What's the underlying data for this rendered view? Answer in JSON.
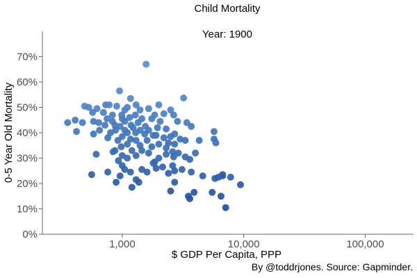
{
  "chart_data": {
    "type": "scatter",
    "title": "Child Mortality",
    "subtitle": "Year: 1900",
    "xlabel": "$ GDP Per Capita, PPP",
    "ylabel": "0-5 Year Old Mortality",
    "caption": "By @toddrjones. Source: Gapminder.",
    "x_scale": "log10",
    "xlim": [
      220,
      250000
    ],
    "ylim": [
      0,
      0.8
    ],
    "x_ticks": [
      1000,
      10000,
      100000
    ],
    "x_tick_labels": [
      "1,000",
      "10,000",
      "100,000"
    ],
    "y_ticks": [
      0,
      0.1,
      0.2,
      0.3,
      0.4,
      0.5,
      0.6,
      0.7
    ],
    "y_tick_labels": [
      "0%",
      "10%",
      "20%",
      "30%",
      "40%",
      "50%",
      "60%",
      "70%"
    ],
    "grid": false,
    "legend": "none",
    "point_color_light": "#5a8fd0",
    "point_color_dark": "#1f4f99",
    "points": [
      [
        1570,
        0.67
      ],
      [
        950,
        0.565
      ],
      [
        3200,
        0.537
      ],
      [
        1170,
        0.535
      ],
      [
        490,
        0.505
      ],
      [
        530,
        0.5
      ],
      [
        730,
        0.51
      ],
      [
        780,
        0.51
      ],
      [
        900,
        0.505
      ],
      [
        1300,
        0.51
      ],
      [
        1400,
        0.49
      ],
      [
        2000,
        0.51
      ],
      [
        1100,
        0.5
      ],
      [
        1050,
        0.49
      ],
      [
        620,
        0.495
      ],
      [
        1650,
        0.495
      ],
      [
        2500,
        0.49
      ],
      [
        1850,
        0.47
      ],
      [
        1280,
        0.47
      ],
      [
        990,
        0.47
      ],
      [
        830,
        0.47
      ],
      [
        700,
        0.48
      ],
      [
        570,
        0.48
      ],
      [
        2200,
        0.475
      ],
      [
        2650,
        0.47
      ],
      [
        1150,
        0.46
      ],
      [
        1000,
        0.455
      ],
      [
        750,
        0.455
      ],
      [
        1450,
        0.455
      ],
      [
        1750,
        0.455
      ],
      [
        2050,
        0.445
      ],
      [
        2850,
        0.445
      ],
      [
        1050,
        0.445
      ],
      [
        830,
        0.445
      ],
      [
        1350,
        0.44
      ],
      [
        640,
        0.44
      ],
      [
        580,
        0.445
      ],
      [
        410,
        0.45
      ],
      [
        355,
        0.44
      ],
      [
        470,
        0.44
      ],
      [
        3400,
        0.44
      ],
      [
        870,
        0.43
      ],
      [
        1180,
        0.43
      ],
      [
        1550,
        0.425
      ],
      [
        960,
        0.425
      ],
      [
        720,
        0.43
      ],
      [
        3700,
        0.425
      ],
      [
        1230,
        0.42
      ],
      [
        1950,
        0.42
      ],
      [
        2300,
        0.415
      ],
      [
        1650,
        0.41
      ],
      [
        1400,
        0.41
      ],
      [
        1050,
        0.41
      ],
      [
        880,
        0.41
      ],
      [
        650,
        0.41
      ],
      [
        420,
        0.405
      ],
      [
        800,
        0.4
      ],
      [
        1100,
        0.4
      ],
      [
        1290,
        0.4
      ],
      [
        1530,
        0.395
      ],
      [
        1800,
        0.39
      ],
      [
        2700,
        0.395
      ],
      [
        2500,
        0.385
      ],
      [
        1900,
        0.39
      ],
      [
        2200,
        0.38
      ],
      [
        3000,
        0.375
      ],
      [
        3300,
        0.37
      ],
      [
        4300,
        0.37
      ],
      [
        5700,
        0.375
      ],
      [
        5900,
        0.36
      ],
      [
        5700,
        0.405
      ],
      [
        1000,
        0.385
      ],
      [
        1170,
        0.375
      ],
      [
        920,
        0.37
      ],
      [
        760,
        0.38
      ],
      [
        580,
        0.395
      ],
      [
        1300,
        0.37
      ],
      [
        1600,
        0.37
      ],
      [
        2400,
        0.36
      ],
      [
        2000,
        0.355
      ],
      [
        1400,
        0.35
      ],
      [
        1100,
        0.355
      ],
      [
        980,
        0.345
      ],
      [
        1750,
        0.345
      ],
      [
        2700,
        0.355
      ],
      [
        2300,
        0.34
      ],
      [
        1200,
        0.33
      ],
      [
        1450,
        0.33
      ],
      [
        1650,
        0.32
      ],
      [
        870,
        0.33
      ],
      [
        1300,
        0.31
      ],
      [
        1000,
        0.31
      ],
      [
        2300,
        0.315
      ],
      [
        2600,
        0.325
      ],
      [
        2900,
        0.32
      ],
      [
        3300,
        0.305
      ],
      [
        4000,
        0.32
      ],
      [
        3600,
        0.295
      ],
      [
        2650,
        0.305
      ],
      [
        2000,
        0.3
      ],
      [
        1850,
        0.285
      ],
      [
        1100,
        0.3
      ],
      [
        930,
        0.29
      ],
      [
        1000,
        0.27
      ],
      [
        1800,
        0.28
      ],
      [
        2600,
        0.27
      ],
      [
        3100,
        0.255
      ],
      [
        2150,
        0.265
      ],
      [
        1900,
        0.26
      ],
      [
        610,
        0.315
      ],
      [
        760,
        0.245
      ],
      [
        840,
        0.325
      ],
      [
        1450,
        0.255
      ],
      [
        1170,
        0.245
      ],
      [
        1050,
        0.255
      ],
      [
        960,
        0.23
      ],
      [
        1300,
        0.215
      ],
      [
        1370,
        0.205
      ],
      [
        1600,
        0.245
      ],
      [
        2400,
        0.24
      ],
      [
        2700,
        0.25
      ],
      [
        2700,
        0.205
      ],
      [
        3700,
        0.245
      ],
      [
        4600,
        0.23
      ],
      [
        5800,
        0.22
      ],
      [
        6200,
        0.225
      ],
      [
        6700,
        0.235
      ],
      [
        6700,
        0.23
      ],
      [
        7800,
        0.225
      ],
      [
        9400,
        0.195
      ],
      [
        560,
        0.235
      ],
      [
        1200,
        0.185
      ],
      [
        890,
        0.205
      ],
      [
        2500,
        0.17
      ],
      [
        3900,
        0.165
      ],
      [
        3500,
        0.15
      ],
      [
        3600,
        0.14
      ],
      [
        5500,
        0.165
      ],
      [
        6500,
        0.15
      ],
      [
        7100,
        0.105
      ]
    ]
  }
}
